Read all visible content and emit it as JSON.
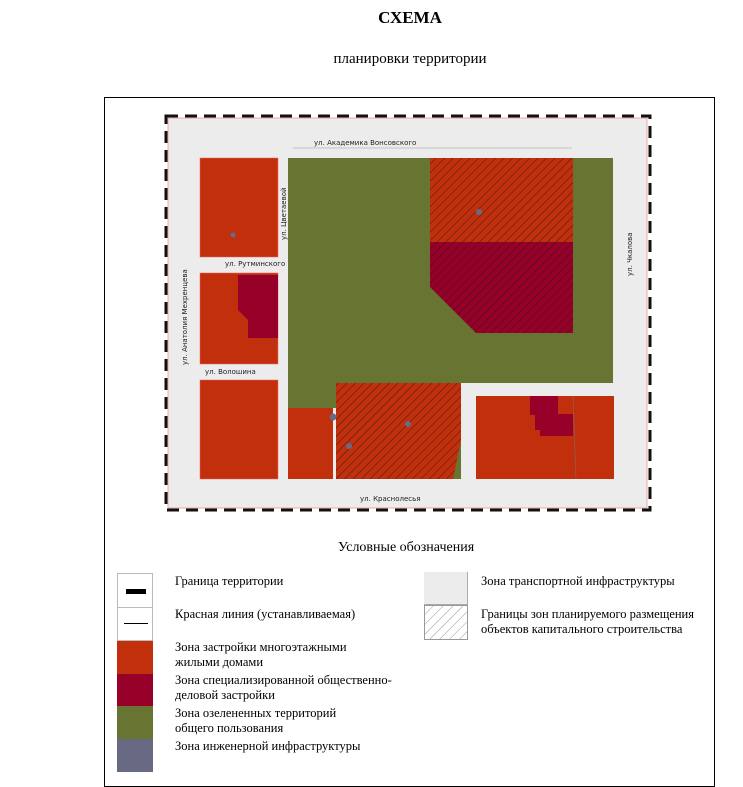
{
  "header": {
    "title": "СХЕМА",
    "subtitle": "планировки территории"
  },
  "map": {
    "streets": {
      "top": "ул. Академика Вонсовского",
      "bottom": "ул. Краснолесья",
      "left": "ул. Анатолия Мехренцева",
      "right": "ул. Чкалова",
      "middle_vertical": "ул. Цветаевой",
      "cross_1": "ул. Рутминского",
      "cross_2": "ул. Волошина"
    },
    "colors": {
      "residential": "#c22f0d",
      "business": "#970028",
      "green": "#687431",
      "engineering": "#686a84",
      "transport": "#ececec"
    }
  },
  "legend": {
    "title": "Условные обозначения",
    "items": [
      {
        "label": "Граница территории"
      },
      {
        "label": "Красная линия (устанавливаемая)"
      },
      {
        "label": "Зона застройки многоэтажными жилыми домами"
      },
      {
        "label": "Зона специализированной общественно-деловой застройки"
      },
      {
        "label": "Зона озелененных территорий общего пользования"
      },
      {
        "label": "Зона инженерной инфраструктуры"
      },
      {
        "label": "Зона транспортной инфраструктуры"
      },
      {
        "label": "Границы зон планируемого размещения объектов капитального строительства"
      }
    ]
  }
}
